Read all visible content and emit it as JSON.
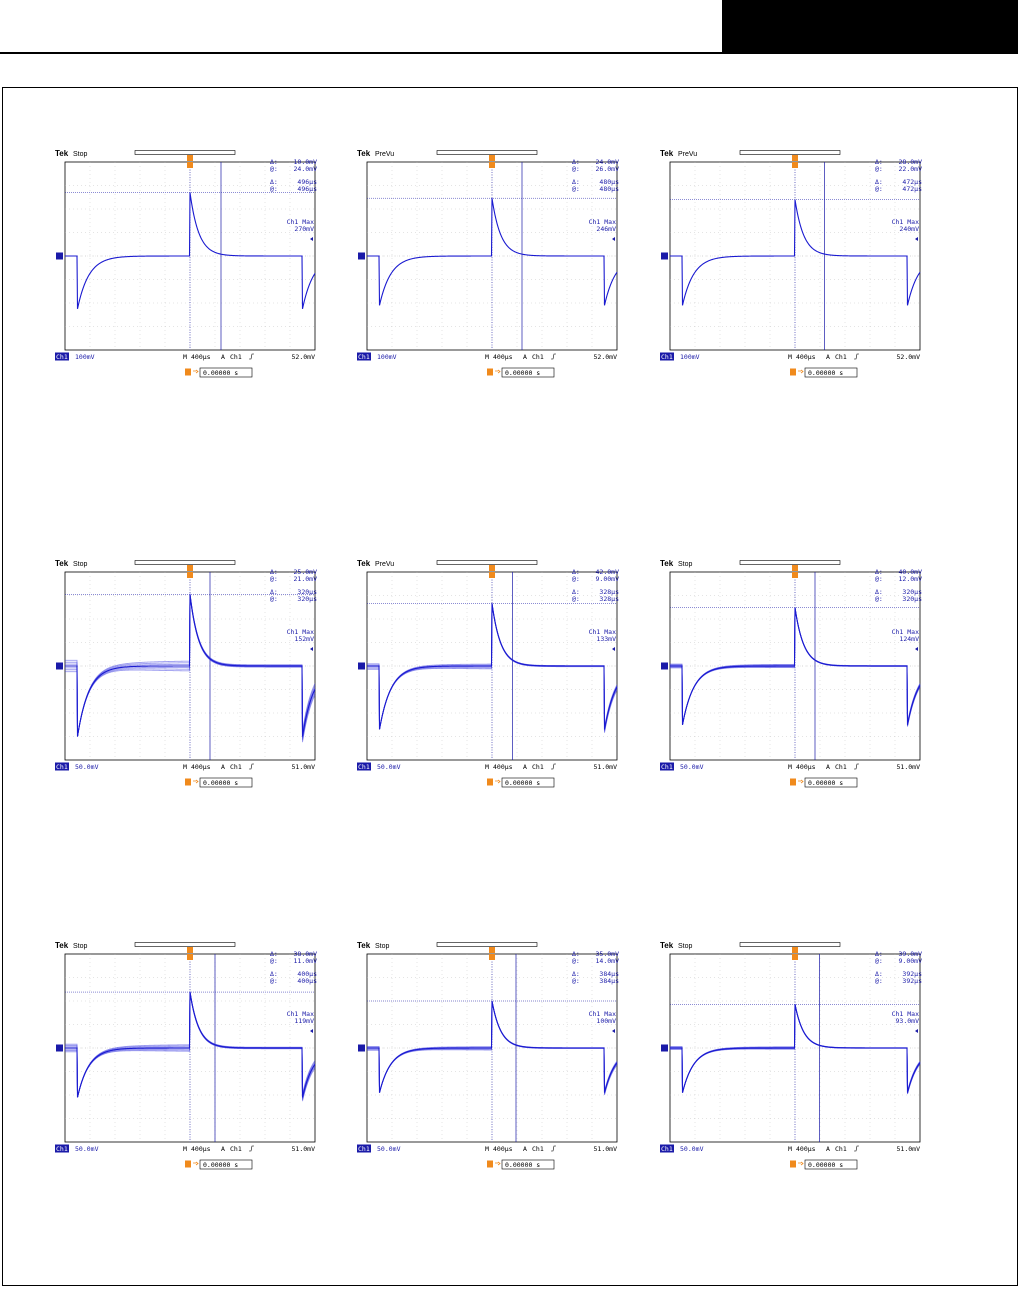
{
  "scopes": [
    {
      "brand": "Tek",
      "status": "Stop",
      "delta_v": "10.0mV",
      "at_v": "24.0mV",
      "delta_t": "496µs",
      "at_t": "496µs",
      "max_label": "Ch1 Max",
      "max_value": "270mV",
      "ch_label": "Ch1",
      "v_div": "100mV",
      "time_div": "400µs",
      "trig_channel": "Ch1",
      "trig_level": "52.0mV",
      "acq_mode": "A",
      "time_prefix": "M",
      "trig_time": "0.00000 s",
      "chart_data": {
        "type": "line",
        "peak_mV": 270,
        "trough_mV": -225,
        "time_per_div_us": 400,
        "volts_per_div_mV": 100,
        "cursor_time_us": 496,
        "jitter_band_mV": 0
      }
    },
    {
      "brand": "Tek",
      "status": "PreVu",
      "delta_v": "24.0mV",
      "at_v": "26.0mV",
      "delta_t": "480µs",
      "at_t": "480µs",
      "max_label": "Ch1 Max",
      "max_value": "246mV",
      "ch_label": "Ch1",
      "v_div": "100mV",
      "time_div": "400µs",
      "trig_channel": "Ch1",
      "trig_level": "52.0mV",
      "acq_mode": "A",
      "time_prefix": "M",
      "trig_time": "0.00000 s",
      "chart_data": {
        "type": "line",
        "peak_mV": 246,
        "trough_mV": -210,
        "time_per_div_us": 400,
        "volts_per_div_mV": 100,
        "cursor_time_us": 480,
        "jitter_band_mV": 0
      }
    },
    {
      "brand": "Tek",
      "status": "PreVu",
      "delta_v": "28.0mV",
      "at_v": "22.0mV",
      "delta_t": "472µs",
      "at_t": "472µs",
      "max_label": "Ch1 Max",
      "max_value": "240mV",
      "ch_label": "Ch1",
      "v_div": "100mV",
      "time_div": "400µs",
      "trig_channel": "Ch1",
      "trig_level": "52.0mV",
      "acq_mode": "A",
      "time_prefix": "M",
      "trig_time": "0.00000 s",
      "chart_data": {
        "type": "line",
        "peak_mV": 240,
        "trough_mV": -210,
        "time_per_div_us": 400,
        "volts_per_div_mV": 100,
        "cursor_time_us": 472,
        "jitter_band_mV": 0
      }
    },
    {
      "brand": "Tek",
      "status": "Stop",
      "delta_v": "25.0mV",
      "at_v": "21.0mV",
      "delta_t": "320µs",
      "at_t": "320µs",
      "max_label": "Ch1 Max",
      "max_value": "152mV",
      "ch_label": "Ch1",
      "v_div": "50.0mV",
      "time_div": "400µs",
      "trig_channel": "Ch1",
      "trig_level": "51.0mV",
      "acq_mode": "A",
      "time_prefix": "M",
      "trig_time": "0.00000 s",
      "chart_data": {
        "type": "line",
        "peak_mV": 152,
        "trough_mV": -150,
        "time_per_div_us": 400,
        "volts_per_div_mV": 50,
        "cursor_time_us": 320,
        "jitter_band_mV": 12
      }
    },
    {
      "brand": "Tek",
      "status": "PreVu",
      "delta_v": "42.0mV",
      "at_v": "9.00mV",
      "delta_t": "328µs",
      "at_t": "328µs",
      "max_label": "Ch1 Max",
      "max_value": "133mV",
      "ch_label": "Ch1",
      "v_div": "50.0mV",
      "time_div": "400µs",
      "trig_channel": "Ch1",
      "trig_level": "51.0mV",
      "acq_mode": "A",
      "time_prefix": "M",
      "trig_time": "0.00000 s",
      "chart_data": {
        "type": "line",
        "peak_mV": 133,
        "trough_mV": -135,
        "time_per_div_us": 400,
        "volts_per_div_mV": 50,
        "cursor_time_us": 328,
        "jitter_band_mV": 7
      }
    },
    {
      "brand": "Tek",
      "status": "Stop",
      "delta_v": "40.0mV",
      "at_v": "12.0mV",
      "delta_t": "320µs",
      "at_t": "320µs",
      "max_label": "Ch1 Max",
      "max_value": "124mV",
      "ch_label": "Ch1",
      "v_div": "50.0mV",
      "time_div": "400µs",
      "trig_channel": "Ch1",
      "trig_level": "51.0mV",
      "acq_mode": "A",
      "time_prefix": "M",
      "trig_time": "0.00000 s",
      "chart_data": {
        "type": "line",
        "peak_mV": 124,
        "trough_mV": -125,
        "time_per_div_us": 400,
        "volts_per_div_mV": 50,
        "cursor_time_us": 320,
        "jitter_band_mV": 4
      }
    },
    {
      "brand": "Tek",
      "status": "Stop",
      "delta_v": "38.0mV",
      "at_v": "11.0mV",
      "delta_t": "400µs",
      "at_t": "400µs",
      "max_label": "Ch1 Max",
      "max_value": "119mV",
      "ch_label": "Ch1",
      "v_div": "50.0mV",
      "time_div": "400µs",
      "trig_channel": "Ch1",
      "trig_level": "51.0mV",
      "acq_mode": "A",
      "time_prefix": "M",
      "trig_time": "0.00000 s",
      "chart_data": {
        "type": "line",
        "peak_mV": 119,
        "trough_mV": -105,
        "time_per_div_us": 400,
        "volts_per_div_mV": 50,
        "cursor_time_us": 400,
        "jitter_band_mV": 8
      }
    },
    {
      "brand": "Tek",
      "status": "Stop",
      "delta_v": "35.0mV",
      "at_v": "14.0mV",
      "delta_t": "384µs",
      "at_t": "384µs",
      "max_label": "Ch1 Max",
      "max_value": "100mV",
      "ch_label": "Ch1",
      "v_div": "50.0mV",
      "time_div": "400µs",
      "trig_channel": "Ch1",
      "trig_level": "51.0mV",
      "acq_mode": "A",
      "time_prefix": "M",
      "trig_time": "0.00000 s",
      "chart_data": {
        "type": "line",
        "peak_mV": 100,
        "trough_mV": -95,
        "time_per_div_us": 400,
        "volts_per_div_mV": 50,
        "cursor_time_us": 384,
        "jitter_band_mV": 5
      }
    },
    {
      "brand": "Tek",
      "status": "Stop",
      "delta_v": "39.0mV",
      "at_v": "9.00mV",
      "delta_t": "392µs",
      "at_t": "392µs",
      "max_label": "Ch1 Max",
      "max_value": "93.0mV",
      "ch_label": "Ch1",
      "v_div": "50.0mV",
      "time_div": "400µs",
      "trig_channel": "Ch1",
      "trig_level": "51.0mV",
      "acq_mode": "A",
      "time_prefix": "M",
      "trig_time": "0.00000 s",
      "chart_data": {
        "type": "line",
        "peak_mV": 93,
        "trough_mV": -95,
        "time_per_div_us": 400,
        "volts_per_div_mV": 50,
        "cursor_time_us": 392,
        "jitter_band_mV": 3
      }
    }
  ],
  "chart_data": [
    {
      "type": "line",
      "ylabel": "",
      "xlabel": "",
      "volts_per_div_mV": 100,
      "time_per_div_us": 400,
      "peak_mV": 270,
      "trough_mV": -225
    },
    {
      "type": "line",
      "ylabel": "",
      "xlabel": "",
      "volts_per_div_mV": 100,
      "time_per_div_us": 400,
      "peak_mV": 246,
      "trough_mV": -210
    },
    {
      "type": "line",
      "ylabel": "",
      "xlabel": "",
      "volts_per_div_mV": 100,
      "time_per_div_us": 400,
      "peak_mV": 240,
      "trough_mV": -210
    },
    {
      "type": "line",
      "ylabel": "",
      "xlabel": "",
      "volts_per_div_mV": 50,
      "time_per_div_us": 400,
      "peak_mV": 152,
      "trough_mV": -150
    },
    {
      "type": "line",
      "ylabel": "",
      "xlabel": "",
      "volts_per_div_mV": 50,
      "time_per_div_us": 400,
      "peak_mV": 133,
      "trough_mV": -135
    },
    {
      "type": "line",
      "ylabel": "",
      "xlabel": "",
      "volts_per_div_mV": 50,
      "time_per_div_us": 400,
      "peak_mV": 124,
      "trough_mV": -125
    },
    {
      "type": "line",
      "ylabel": "",
      "xlabel": "",
      "volts_per_div_mV": 50,
      "time_per_div_us": 400,
      "peak_mV": 119,
      "trough_mV": -105
    },
    {
      "type": "line",
      "ylabel": "",
      "xlabel": "",
      "volts_per_div_mV": 50,
      "time_per_div_us": 400,
      "peak_mV": 100,
      "trough_mV": -95
    },
    {
      "type": "line",
      "ylabel": "",
      "xlabel": "",
      "volts_per_div_mV": 50,
      "time_per_div_us": 400,
      "peak_mV": 93,
      "trough_mV": -95
    }
  ]
}
